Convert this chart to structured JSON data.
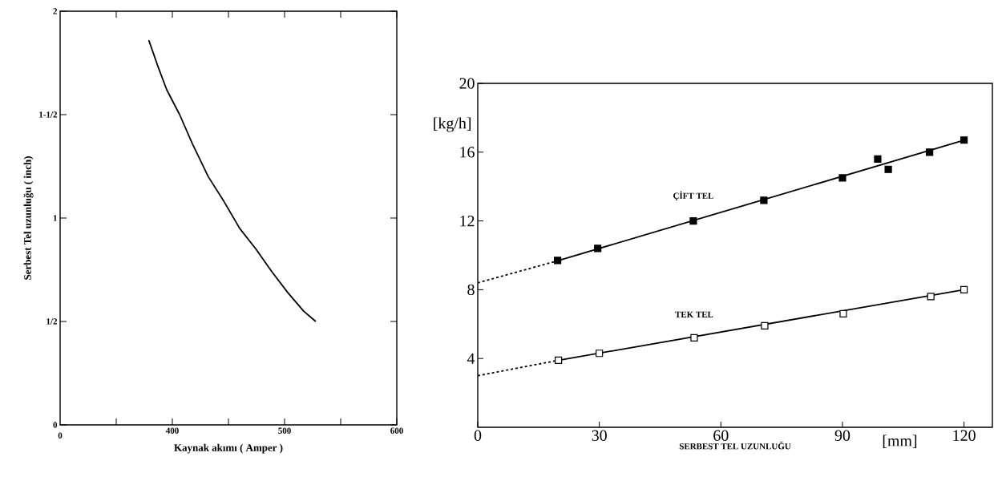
{
  "chart_data": [
    {
      "type": "line",
      "xlabel": "Kaynak akımı ( Amper )",
      "ylabel": "Serbest Tel uzunluğu ( inch)",
      "annotations": [
        "0"
      ],
      "xlim": [
        300,
        600
      ],
      "xticks": [
        {
          "value": 350,
          "label": null
        },
        400,
        {
          "value": 450,
          "label": null
        },
        500,
        {
          "value": 550,
          "label": null
        },
        600
      ],
      "ylim": [
        0,
        2
      ],
      "yticks": [
        0,
        {
          "value": 0.5,
          "label": "1/2"
        },
        1,
        {
          "value": 1.5,
          "label": "1-1/2"
        },
        2
      ],
      "grid": false,
      "line_style": "solid",
      "series": [
        {
          "color": "#000000",
          "x": [
            379,
            386.7,
            395,
            406.5,
            417.8,
            432,
            446,
            460,
            474.5,
            488.7,
            502.8,
            517,
            527.8
          ],
          "values": [
            1.86,
            1.74,
            1.62,
            1.5,
            1.36,
            1.2,
            1.08,
            0.95,
            0.85,
            0.74,
            0.64,
            0.55,
            0.5
          ]
        }
      ]
    },
    {
      "type": "scatter",
      "xlabel": "SERBEST TEL UZUNLUĞU",
      "ylabel": "[kg/h]",
      "annotations": [
        "[mm]"
      ],
      "xlim": [
        0,
        127
      ],
      "xticks": [
        0,
        30,
        60,
        90,
        120
      ],
      "ylim": [
        0,
        20
      ],
      "yticks": [
        4,
        8,
        12,
        16,
        20
      ],
      "grid": false,
      "series": [
        {
          "type": "line",
          "color": "#000000",
          "line_style": "dashed",
          "x": [
            0,
            20
          ],
          "values": [
            8.4,
            9.7
          ]
        },
        {
          "type": "line",
          "color": "#000000",
          "line_style": "solid",
          "x": [
            20,
            120
          ],
          "values": [
            9.7,
            16.7
          ]
        },
        {
          "type": "line",
          "color": "#000000",
          "line_style": "dashed",
          "x": [
            0,
            20
          ],
          "values": [
            3.0,
            3.9
          ]
        },
        {
          "type": "line",
          "color": "#000000",
          "line_style": "solid",
          "x": [
            20,
            120
          ],
          "values": [
            3.9,
            8.0
          ]
        },
        {
          "type": "scatter",
          "name": "ÇİFT TEL",
          "marker": "square",
          "color": "#000000",
          "x": [
            19.7,
            29.6,
            53.2,
            70.6,
            90,
            98.7,
            101.3,
            111.5,
            120
          ],
          "values": [
            9.7,
            10.4,
            12.0,
            13.2,
            14.5,
            15.6,
            15.0,
            16.0,
            16.7
          ]
        },
        {
          "type": "scatter",
          "name": "TEK TEL",
          "marker": "square",
          "color": "#ffffff",
          "x": [
            19.9,
            30,
            53.4,
            70.8,
            90.2,
            111.8,
            120
          ],
          "values": [
            3.9,
            4.3,
            5.2,
            5.9,
            6.6,
            7.6,
            8.0
          ]
        }
      ]
    }
  ]
}
